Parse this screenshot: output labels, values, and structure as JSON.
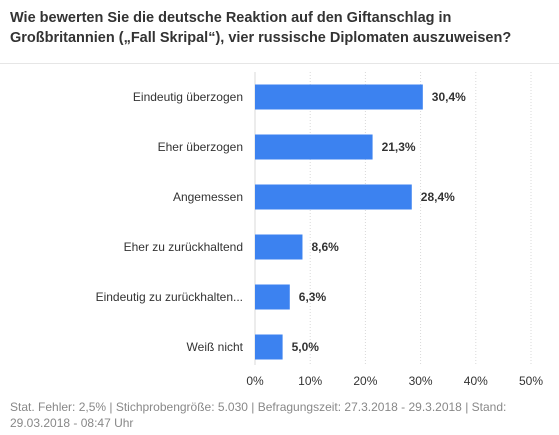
{
  "title": "Wie bewerten Sie die deutsche Reaktion auf den Giftanschlag in Großbritannien („Fall Skripal“), vier russische Diplomaten auszuweisen?",
  "footnote": "Stat. Fehler: 2,5% | Stichprobengröße: 5.030 | Befragungszeit: 27.3.2018 - 29.3.2018 | Stand: 29.03.2018 - 08:47 Uhr",
  "colors": {
    "bar": "#3c82f0",
    "grid": "#d9d9d9"
  },
  "chart_data": {
    "type": "bar",
    "orientation": "horizontal",
    "categories": [
      "Eindeutig überzogen",
      "Eher überzogen",
      "Angemessen",
      "Eher zu zurückhaltend",
      "Eindeutig zu zurückhalten...",
      "Weiß nicht"
    ],
    "values": [
      30.4,
      21.3,
      28.4,
      8.6,
      6.3,
      5.0
    ],
    "value_labels": [
      "30,4%",
      "21,3%",
      "28,4%",
      "8,6%",
      "6,3%",
      "5,0%"
    ],
    "xlim": [
      0,
      50
    ],
    "x_ticks": [
      0,
      10,
      20,
      30,
      40,
      50
    ],
    "x_tick_labels": [
      "0%",
      "10%",
      "20%",
      "30%",
      "40%",
      "50%"
    ],
    "grid": true
  }
}
